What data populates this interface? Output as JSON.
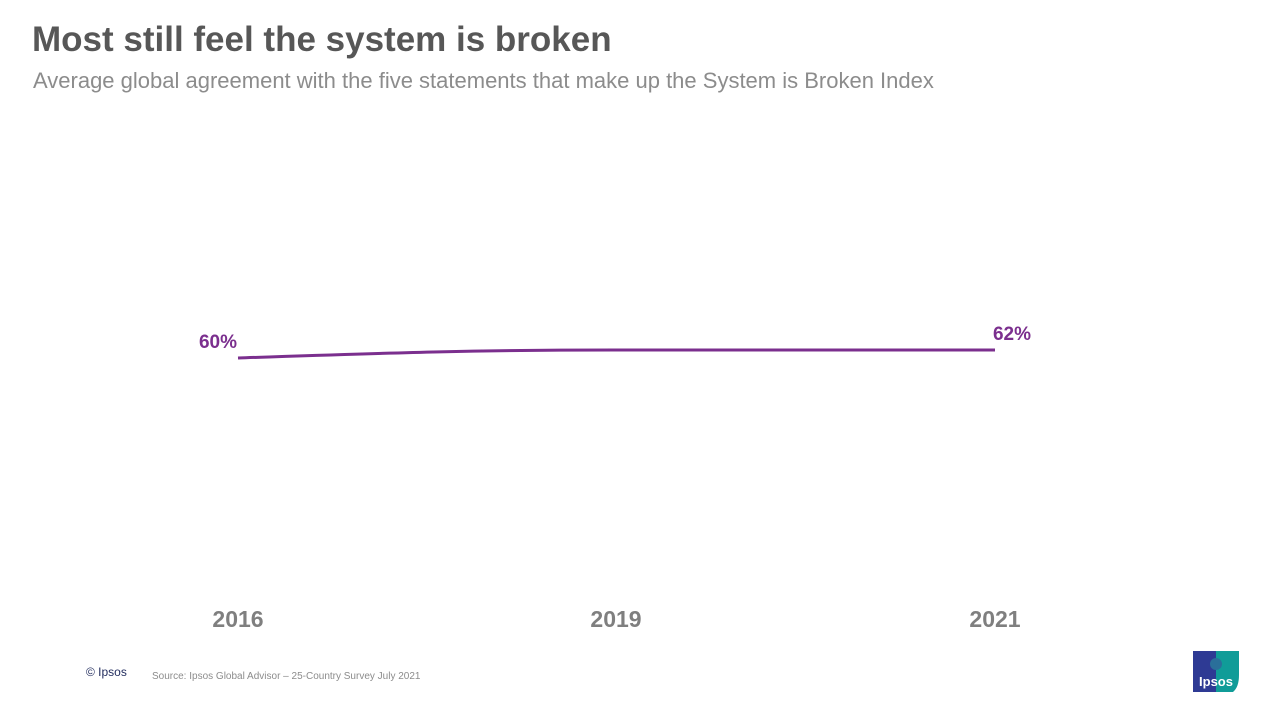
{
  "title": "Most still feel the system is broken",
  "subtitle": "Average global agreement with the five statements that make up the System is Broken Index",
  "footer": {
    "copyright": "© Ipsos",
    "source": "Source: Ipsos Global Advisor – 25-Country Survey July 2021",
    "logo": "Ipsos"
  },
  "chart_data": {
    "type": "line",
    "categories": [
      "2016",
      "2019",
      "2021"
    ],
    "values": [
      60,
      62,
      62
    ],
    "data_labels": [
      "60%",
      "",
      "62%"
    ],
    "color": "#7b2f8e",
    "grid": false,
    "legend": "none"
  }
}
